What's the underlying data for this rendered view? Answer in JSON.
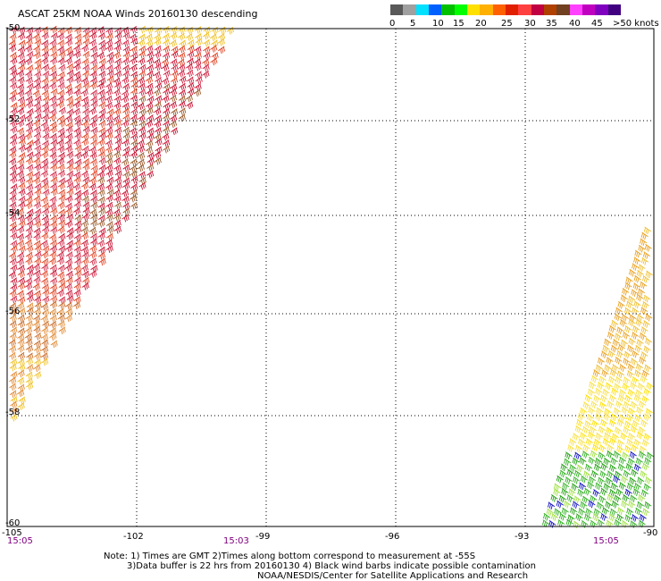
{
  "title": "ASCAT 25KM NOAA Winds 20160130 descending",
  "colorbar": {
    "colors": [
      "#595959",
      "#a0a0a0",
      "#00e0ff",
      "#0060ff",
      "#00c000",
      "#00ff00",
      "#ffe000",
      "#ffb000",
      "#ff6000",
      "#e02000",
      "#ff4040",
      "#c00040",
      "#b04000",
      "#704020",
      "#ff40ff",
      "#c000c0",
      "#8000c0",
      "#400080"
    ],
    "labels": [
      "0",
      "5",
      "10",
      "15",
      "20",
      "25",
      "30",
      "35",
      "40",
      "45",
      ">50 knots"
    ]
  },
  "lat_labels": [
    "-50",
    "-52",
    "-54",
    "-56",
    "-58",
    "-60"
  ],
  "lon_labels": [
    "-105",
    "-102",
    "-99",
    "-96",
    "-93",
    "-90"
  ],
  "times": [
    "15:05",
    "15:03",
    "15:05"
  ],
  "note_lines": [
    "Note: 1) Times are GMT 2)Times along bottom correspond to measurement at -55S",
    "3)Data buffer is 22 hrs from 20160130 4) Black wind barbs indicate possible contamination",
    "NOAA/NESDIS/Center for Satellite Applications and Research"
  ],
  "swaths": {
    "west": {
      "colors": [
        "#c81030",
        "#d02040",
        "#e04020",
        "#c86820",
        "#e08830",
        "#f0c020",
        "#9a5a2a"
      ]
    },
    "east": {
      "colors": [
        "#e8a020",
        "#f0c030",
        "#f8e040",
        "#ffe000",
        "#30b020",
        "#20a010",
        "#a0e040",
        "#1010c0"
      ]
    }
  }
}
